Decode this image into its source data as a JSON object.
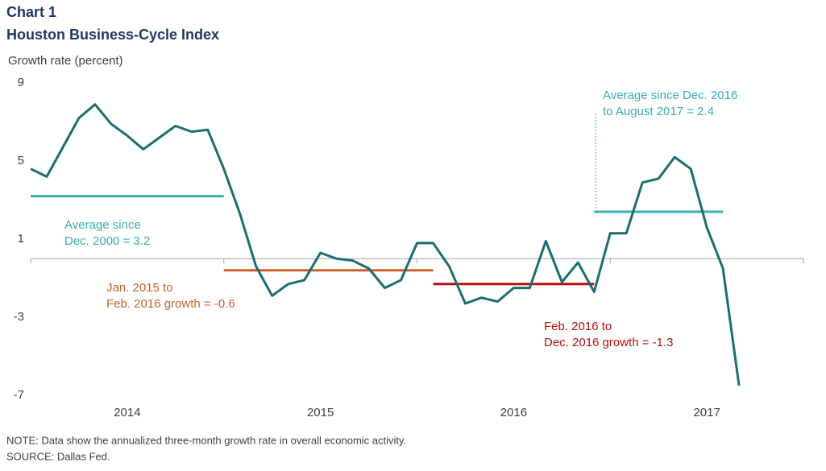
{
  "chart_data": {
    "type": "line",
    "title": "Chart 1",
    "subtitle": "Houston Business-Cycle Index",
    "y_label": "Growth rate (percent)",
    "note": "NOTE: Data show the annualized three-month growth rate in overall economic activity.",
    "source": "SOURCE: Dallas Fed.",
    "x": [
      2014,
      2014.0833,
      2014.1667,
      2014.25,
      2014.3333,
      2014.4167,
      2014.5,
      2014.5833,
      2014.6667,
      2014.75,
      2014.8333,
      2014.9167,
      2015,
      2015.0833,
      2015.1667,
      2015.25,
      2015.3333,
      2015.4167,
      2015.5,
      2015.5833,
      2015.6667,
      2015.75,
      2015.8333,
      2015.9167,
      2016,
      2016.0833,
      2016.1667,
      2016.25,
      2016.3333,
      2016.4167,
      2016.5,
      2016.5833,
      2016.6667,
      2016.75,
      2016.8333,
      2016.9167,
      2017,
      2017.0833,
      2017.1667,
      2017.25,
      2017.3333,
      2017.4167,
      2017.5,
      2017.5833,
      2017.6667
    ],
    "series": [
      {
        "name": "Houston Business-Cycle Index",
        "color": "#1c6e6e",
        "values": [
          4.6,
          4.2,
          5.7,
          7.2,
          7.9,
          6.9,
          6.3,
          5.6,
          6.2,
          6.8,
          6.5,
          6.6,
          4.6,
          2.3,
          -0.4,
          -1.9,
          -1.3,
          -1.1,
          0.3,
          0.0,
          -0.1,
          -0.5,
          -1.5,
          -1.1,
          0.8,
          0.8,
          -0.4,
          -2.3,
          -2.0,
          -2.2,
          -1.5,
          -1.5,
          0.9,
          -1.2,
          -0.2,
          -1.7,
          1.3,
          1.3,
          3.9,
          4.1,
          5.2,
          4.6,
          1.6,
          -0.5,
          -6.5
        ]
      }
    ],
    "reference_lines": [
      {
        "lines": [
          "Average since",
          "Dec. 2000 = 3.2"
        ],
        "value": 3.2,
        "x": [
          2014,
          2015
        ],
        "color": "#3aacb3"
      },
      {
        "lines": [
          "Jan. 2015 to",
          "Feb. 2016 growth = -0.6"
        ],
        "value": -0.6,
        "x": [
          2015,
          2016.0833
        ],
        "color": "#c8602a"
      },
      {
        "lines": [
          "Feb. 2016 to",
          "Dec. 2016 growth = -1.3"
        ],
        "value": -1.3,
        "x": [
          2016.0833,
          2016.9167
        ],
        "color": "#b50f0f"
      },
      {
        "lines": [
          "Average since Dec. 2016",
          "to August 2017 = 2.4"
        ],
        "value": 2.4,
        "x": [
          2016.9167,
          2017.5833
        ],
        "color": "#3aacb3"
      }
    ],
    "xlim": [
      2014,
      2018
    ],
    "xticks": [
      {
        "value": 2014.5,
        "label": "2014"
      },
      {
        "value": 2015.5,
        "label": "2015"
      },
      {
        "value": 2016.5,
        "label": "2016"
      },
      {
        "value": 2017.5,
        "label": "2017"
      }
    ],
    "x_boundaries": [
      2014,
      2015,
      2016,
      2017,
      2018
    ],
    "ylim": [
      -7,
      9
    ],
    "yticks": [
      9,
      5,
      1,
      -3,
      -7
    ],
    "grid": false
  }
}
